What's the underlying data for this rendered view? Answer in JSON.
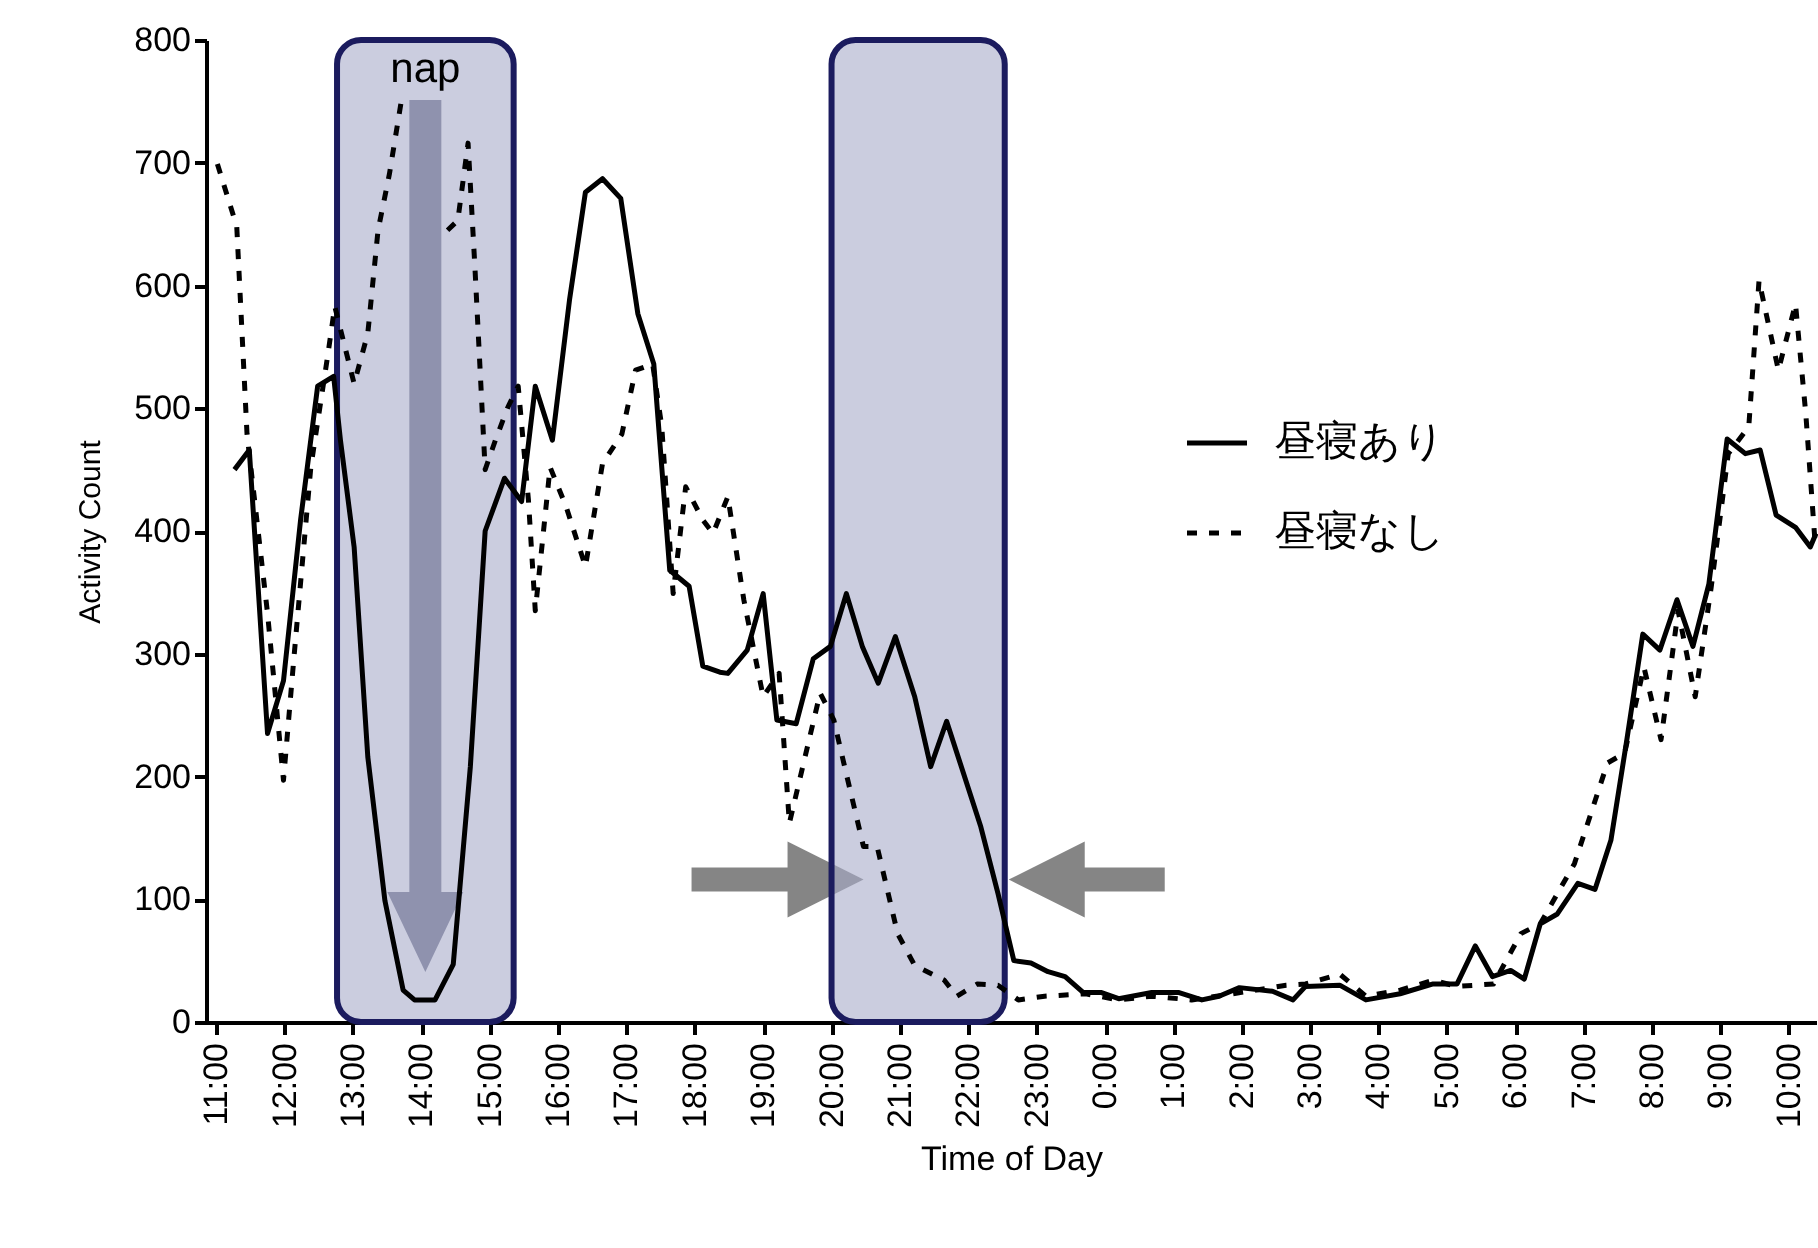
{
  "chart_data": {
    "type": "line",
    "xlabel": "Time of Day",
    "ylabel": "Activity Count",
    "xlim": [
      "2000-01-01T10:51",
      "2000-01-02T10:24"
    ],
    "ylim": [
      0,
      800
    ],
    "yticks": [
      0,
      100,
      200,
      300,
      400,
      500,
      600,
      700,
      800
    ],
    "xticks": [
      {
        "value": "2000-01-01T11:00",
        "label": "11:00"
      },
      {
        "value": "2000-01-01T12:00",
        "label": "12:00"
      },
      {
        "value": "2000-01-01T13:00",
        "label": "13:00"
      },
      {
        "value": "2000-01-01T14:00",
        "label": "14:00"
      },
      {
        "value": "2000-01-01T15:00",
        "label": "15:00"
      },
      {
        "value": "2000-01-01T16:00",
        "label": "16:00"
      },
      {
        "value": "2000-01-01T17:00",
        "label": "17:00"
      },
      {
        "value": "2000-01-01T18:00",
        "label": "18:00"
      },
      {
        "value": "2000-01-01T19:00",
        "label": "19:00"
      },
      {
        "value": "2000-01-01T20:00",
        "label": "20:00"
      },
      {
        "value": "2000-01-01T21:00",
        "label": "21:00"
      },
      {
        "value": "2000-01-01T22:00",
        "label": "22:00"
      },
      {
        "value": "2000-01-01T23:00",
        "label": "23:00"
      },
      {
        "value": "2000-01-02T00:00",
        "label": "0:00"
      },
      {
        "value": "2000-01-02T01:00",
        "label": "1:00"
      },
      {
        "value": "2000-01-02T02:00",
        "label": "2:00"
      },
      {
        "value": "2000-01-02T03:00",
        "label": "3:00"
      },
      {
        "value": "2000-01-02T04:00",
        "label": "4:00"
      },
      {
        "value": "2000-01-02T05:00",
        "label": "5:00"
      },
      {
        "value": "2000-01-02T06:00",
        "label": "6:00"
      },
      {
        "value": "2000-01-02T07:00",
        "label": "7:00"
      },
      {
        "value": "2000-01-02T08:00",
        "label": "8:00"
      },
      {
        "value": "2000-01-02T09:00",
        "label": "9:00"
      },
      {
        "value": "2000-01-02T10:00",
        "label": "10:00"
      }
    ],
    "grid": false,
    "legend": "top right",
    "marker": "none",
    "bands": [
      {
        "axis": "x",
        "from": "2000-01-01T12:46",
        "to": "2000-01-01T15:21",
        "label": "nap",
        "color": "#a9acc9"
      },
      {
        "axis": "x",
        "from": "2000-01-01T20:00",
        "to": "2000-01-01T22:32",
        "label": null,
        "color": "#a9acc9"
      }
    ],
    "series": [
      {
        "name": "昼寝あり",
        "color": "#000000",
        "line_style": "solid",
        "x": [
          "2000-01-01T11:16",
          "2000-01-01T11:29",
          "2000-01-01T11:45",
          "2000-01-01T11:59",
          "2000-01-01T12:14",
          "2000-01-01T12:29",
          "2000-01-01T12:43",
          "2000-01-01T12:49",
          "2000-01-01T13:01",
          "2000-01-01T13:13",
          "2000-01-01T13:28",
          "2000-01-01T13:44",
          "2000-01-01T13:54",
          "2000-01-01T14:12",
          "2000-01-01T14:28",
          "2000-01-01T14:43",
          "2000-01-01T14:56",
          "2000-01-01T15:13",
          "2000-01-01T15:28",
          "2000-01-01T15:40",
          "2000-01-01T15:55",
          "2000-01-01T16:10",
          "2000-01-01T16:24",
          "2000-01-01T16:39",
          "2000-01-01T16:55",
          "2000-01-01T17:10",
          "2000-01-01T17:24",
          "2000-01-01T17:38",
          "2000-01-01T17:55",
          "2000-01-01T18:07",
          "2000-01-01T18:22",
          "2000-01-01T18:29",
          "2000-01-01T18:46",
          "2000-01-01T19:00",
          "2000-01-01T19:12",
          "2000-01-01T19:29",
          "2000-01-01T19:44",
          "2000-01-01T19:59",
          "2000-01-01T20:13",
          "2000-01-01T20:27",
          "2000-01-01T20:41",
          "2000-01-01T20:56",
          "2000-01-01T21:13",
          "2000-01-01T21:27",
          "2000-01-01T21:41",
          "2000-01-01T22:11",
          "2000-01-01T22:26",
          "2000-01-01T22:40",
          "2000-01-01T22:55",
          "2000-01-01T23:10",
          "2000-01-01T23:25",
          "2000-01-01T23:41",
          "2000-01-01T23:57",
          "2000-01-02T00:12",
          "2000-01-02T00:41",
          "2000-01-02T01:05",
          "2000-01-02T01:25",
          "2000-01-02T01:40",
          "2000-01-02T01:58",
          "2000-01-02T02:27",
          "2000-01-02T02:45",
          "2000-01-02T02:56",
          "2000-01-02T03:26",
          "2000-01-02T03:49",
          "2000-01-02T04:19",
          "2000-01-02T04:48",
          "2000-01-02T05:09",
          "2000-01-02T05:25",
          "2000-01-02T05:40",
          "2000-01-02T05:56",
          "2000-01-02T06:08",
          "2000-01-02T06:22",
          "2000-01-02T06:37",
          "2000-01-02T06:55",
          "2000-01-02T07:10",
          "2000-01-02T07:24",
          "2000-01-02T07:38",
          "2000-01-02T07:52",
          "2000-01-02T08:07",
          "2000-01-02T08:22",
          "2000-01-02T08:36",
          "2000-01-02T08:50",
          "2000-01-02T09:06",
          "2000-01-02T09:22",
          "2000-01-02T09:35",
          "2000-01-02T09:49",
          "2000-01-02T10:06",
          "2000-01-02T10:19",
          "2000-01-02T10:24"
        ],
        "values": [
          450,
          466,
          235,
          278,
          409,
          518,
          526,
          474,
          387,
          216,
          99,
          26,
          18,
          18,
          47,
          208,
          400,
          443,
          424,
          518,
          474,
          588,
          676,
          687,
          671,
          577,
          536,
          368,
          355,
          290,
          285,
          284,
          303,
          349,
          246,
          243,
          296,
          306,
          349,
          306,
          276,
          314,
          265,
          208,
          245,
          159,
          105,
          50,
          48,
          41,
          37,
          24,
          24,
          19,
          24,
          24,
          18,
          21,
          28,
          25,
          18,
          29,
          30,
          18,
          23,
          31,
          31,
          62,
          37,
          42,
          35,
          80,
          88,
          113,
          108,
          148,
          230,
          316,
          303,
          344,
          306,
          357,
          475,
          463,
          466,
          413,
          403,
          387,
          398
        ]
      },
      {
        "name": "昼寝なし",
        "color": "#000000",
        "line_style": "dashed",
        "x": [
          "2000-01-01T11:01",
          "2000-01-01T11:18",
          "2000-01-01T11:27",
          "2000-01-01T11:45",
          "2000-01-01T11:59",
          "2000-01-01T12:08",
          "2000-01-01T12:23",
          "2000-01-01T12:38",
          "2000-01-01T12:44",
          "2000-01-01T13:01",
          "2000-01-01T13:13",
          "2000-01-01T13:22",
          "2000-01-01T13:32",
          "2000-01-01T13:42",
          "2000-01-01T13:54",
          "2000-01-01T14:09",
          "2000-01-01T14:23",
          "2000-01-01T14:32",
          "2000-01-01T14:41",
          "2000-01-01T14:47",
          "2000-01-01T14:56",
          "2000-01-01T15:05",
          "2000-01-01T15:16",
          "2000-01-01T15:25",
          "2000-01-01T15:34",
          "2000-01-01T15:40",
          "2000-01-01T15:53",
          "2000-01-01T16:07",
          "2000-01-01T16:24",
          "2000-01-01T16:39",
          "2000-01-01T16:56",
          "2000-01-01T17:08",
          "2000-01-01T17:23",
          "2000-01-01T17:31",
          "2000-01-01T17:41",
          "2000-01-01T17:52",
          "2000-01-01T18:07",
          "2000-01-01T18:16",
          "2000-01-01T18:29",
          "2000-01-01T18:43",
          "2000-01-01T19:00",
          "2000-01-01T19:14",
          "2000-01-01T19:23",
          "2000-01-01T19:50",
          "2000-01-01T20:02",
          "2000-01-01T20:13",
          "2000-01-01T20:28",
          "2000-01-01T20:40",
          "2000-01-01T20:58",
          "2000-01-01T21:13",
          "2000-01-01T21:39",
          "2000-01-01T21:50",
          "2000-01-01T22:08",
          "2000-01-01T22:26",
          "2000-01-01T22:44",
          "2000-01-01T23:07",
          "2000-01-01T23:43",
          "2000-01-02T00:12",
          "2000-01-02T00:41",
          "2000-01-02T01:16",
          "2000-01-02T01:52",
          "2000-01-02T02:39",
          "2000-01-02T02:56",
          "2000-01-02T03:26",
          "2000-01-02T03:49",
          "2000-01-02T04:19",
          "2000-01-02T04:48",
          "2000-01-02T05:09",
          "2000-01-02T05:41",
          "2000-01-02T06:05",
          "2000-01-02T06:22",
          "2000-01-02T06:52",
          "2000-01-02T07:21",
          "2000-01-02T07:36",
          "2000-01-02T07:53",
          "2000-01-02T08:08",
          "2000-01-02T08:23",
          "2000-01-02T08:38",
          "2000-01-02T08:52",
          "2000-01-02T09:07",
          "2000-01-02T09:25",
          "2000-01-02T09:34",
          "2000-01-02T09:51",
          "2000-01-02T10:06",
          "2000-01-02T10:15",
          "2000-01-02T10:23"
        ],
        "values": [
          699,
          648,
          479,
          333,
          197,
          295,
          452,
          544,
          583,
          520,
          561,
          645,
          691,
          748,
          null,
          null,
          645,
          653,
          716,
          615,
          450,
          474,
          501,
          518,
          425,
          335,
          452,
          420,
          371,
          455,
          479,
          531,
          536,
          485,
          349,
          436,
          409,
          398,
          428,
          344,
          265,
          284,
          162,
          268,
          246,
          202,
          143,
          143,
          72,
          46,
          34,
          21,
          31,
          30,
          18,
          21,
          23,
          18,
          21,
          18,
          23,
          30,
          31,
          39,
          21,
          26,
          34,
          29,
          31,
          72,
          80,
          129,
          211,
          219,
          289,
          230,
          335,
          265,
          354,
          463,
          485,
          604,
          531,
          585,
          496,
          393
        ]
      }
    ]
  }
}
